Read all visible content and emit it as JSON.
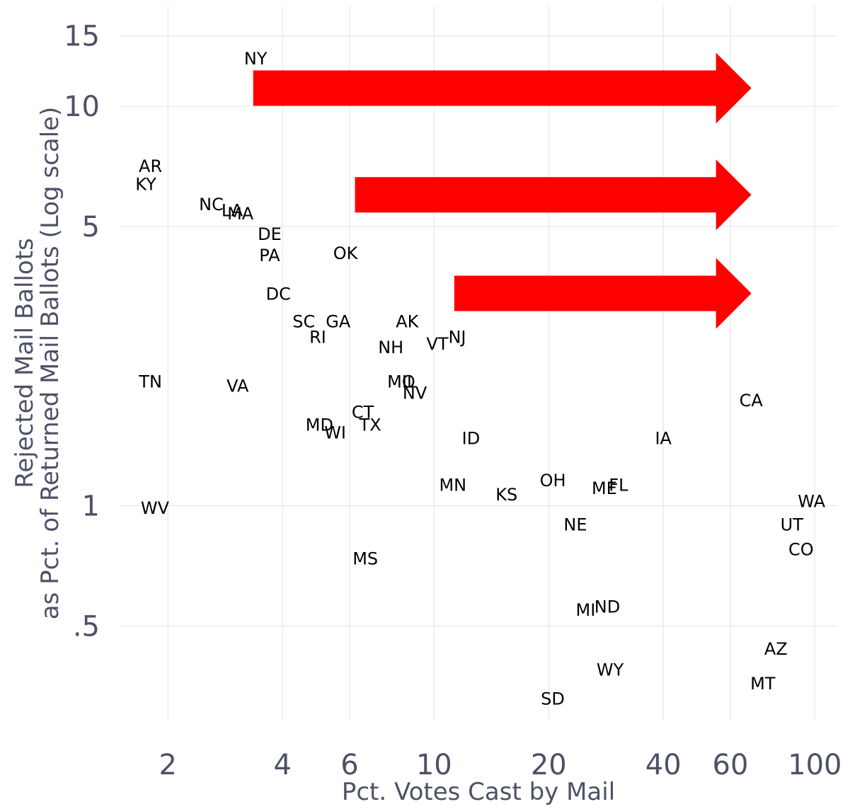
{
  "chart_data": {
    "type": "scatter",
    "xlabel": "Pct. Votes Cast by Mail",
    "ylabel_line1": "Rejected Mail Ballots",
    "ylabel_line2": "as Pct. of Returned Mail Ballots (Log scale)",
    "x_scale": "log",
    "y_scale": "log",
    "xlim": [
      1.5,
      115
    ],
    "ylim": [
      0.29,
      17
    ],
    "x_ticks": [
      2,
      4,
      6,
      10,
      20,
      40,
      60,
      100
    ],
    "x_tick_labels": [
      "2",
      "4",
      "6",
      "10",
      "20",
      "40",
      "60",
      "100"
    ],
    "y_ticks": [
      0.5,
      1,
      5,
      10,
      15
    ],
    "y_tick_labels": [
      ".5",
      "1",
      "5",
      "10",
      "15"
    ],
    "grid": true,
    "legend": "none",
    "points": [
      {
        "label": "NY",
        "x": 3.4,
        "y": 13.2
      },
      {
        "label": "AR",
        "x": 1.8,
        "y": 7.1
      },
      {
        "label": "KY",
        "x": 1.75,
        "y": 6.4
      },
      {
        "label": "NC",
        "x": 2.6,
        "y": 5.7
      },
      {
        "label": "LA",
        "x": 2.95,
        "y": 5.5
      },
      {
        "label": "MA",
        "x": 3.1,
        "y": 5.4
      },
      {
        "label": "DE",
        "x": 3.7,
        "y": 4.8
      },
      {
        "label": "PA",
        "x": 3.7,
        "y": 4.25
      },
      {
        "label": "OK",
        "x": 5.85,
        "y": 4.3
      },
      {
        "label": "DC",
        "x": 3.9,
        "y": 3.4
      },
      {
        "label": "SC",
        "x": 4.55,
        "y": 2.9
      },
      {
        "label": "GA",
        "x": 5.6,
        "y": 2.9
      },
      {
        "label": "RI",
        "x": 4.95,
        "y": 2.65
      },
      {
        "label": "AK",
        "x": 8.5,
        "y": 2.9
      },
      {
        "label": "NH",
        "x": 7.7,
        "y": 2.5
      },
      {
        "label": "VT",
        "x": 10.2,
        "y": 2.55
      },
      {
        "label": "NJ",
        "x": 11.5,
        "y": 2.65
      },
      {
        "label": "TN",
        "x": 1.8,
        "y": 2.05
      },
      {
        "label": "VA",
        "x": 3.05,
        "y": 2.0
      },
      {
        "label": "MO",
        "x": 8.2,
        "y": 2.05
      },
      {
        "label": "IL",
        "x": 8.6,
        "y": 2.05
      },
      {
        "label": "NV",
        "x": 8.9,
        "y": 1.92
      },
      {
        "label": "CA",
        "x": 68,
        "y": 1.84
      },
      {
        "label": "CT",
        "x": 6.5,
        "y": 1.72
      },
      {
        "label": "TX",
        "x": 6.8,
        "y": 1.6
      },
      {
        "label": "MD",
        "x": 5.0,
        "y": 1.6
      },
      {
        "label": "WI",
        "x": 5.5,
        "y": 1.53
      },
      {
        "label": "ID",
        "x": 12.5,
        "y": 1.48
      },
      {
        "label": "IA",
        "x": 40,
        "y": 1.48
      },
      {
        "label": "MN",
        "x": 11.2,
        "y": 1.13
      },
      {
        "label": "OH",
        "x": 20.5,
        "y": 1.16
      },
      {
        "label": "KS",
        "x": 15.5,
        "y": 1.07
      },
      {
        "label": "ME",
        "x": 28,
        "y": 1.11
      },
      {
        "label": "FL",
        "x": 30.5,
        "y": 1.13
      },
      {
        "label": "WA",
        "x": 98,
        "y": 1.03
      },
      {
        "label": "WV",
        "x": 1.85,
        "y": 0.99
      },
      {
        "label": "NE",
        "x": 23.5,
        "y": 0.9
      },
      {
        "label": "UT",
        "x": 87,
        "y": 0.9
      },
      {
        "label": "CO",
        "x": 92,
        "y": 0.78
      },
      {
        "label": "MS",
        "x": 6.6,
        "y": 0.74
      },
      {
        "label": "MI",
        "x": 25,
        "y": 0.55
      },
      {
        "label": "ND",
        "x": 28.5,
        "y": 0.56
      },
      {
        "label": "AZ",
        "x": 79,
        "y": 0.44
      },
      {
        "label": "WY",
        "x": 29,
        "y": 0.39
      },
      {
        "label": "MT",
        "x": 73,
        "y": 0.36
      },
      {
        "label": "SD",
        "x": 20.5,
        "y": 0.33
      }
    ]
  },
  "annotations": {
    "arrow_color": "#ff0000",
    "arrows": [
      {
        "name": "arrow-top",
        "x_start": 3.35,
        "x_end": 55,
        "y": 11.1
      },
      {
        "name": "arrow-middle",
        "x_start": 6.2,
        "x_end": 55,
        "y": 6.0
      },
      {
        "name": "arrow-bottom",
        "x_start": 11.3,
        "x_end": 55,
        "y": 3.4
      }
    ]
  }
}
